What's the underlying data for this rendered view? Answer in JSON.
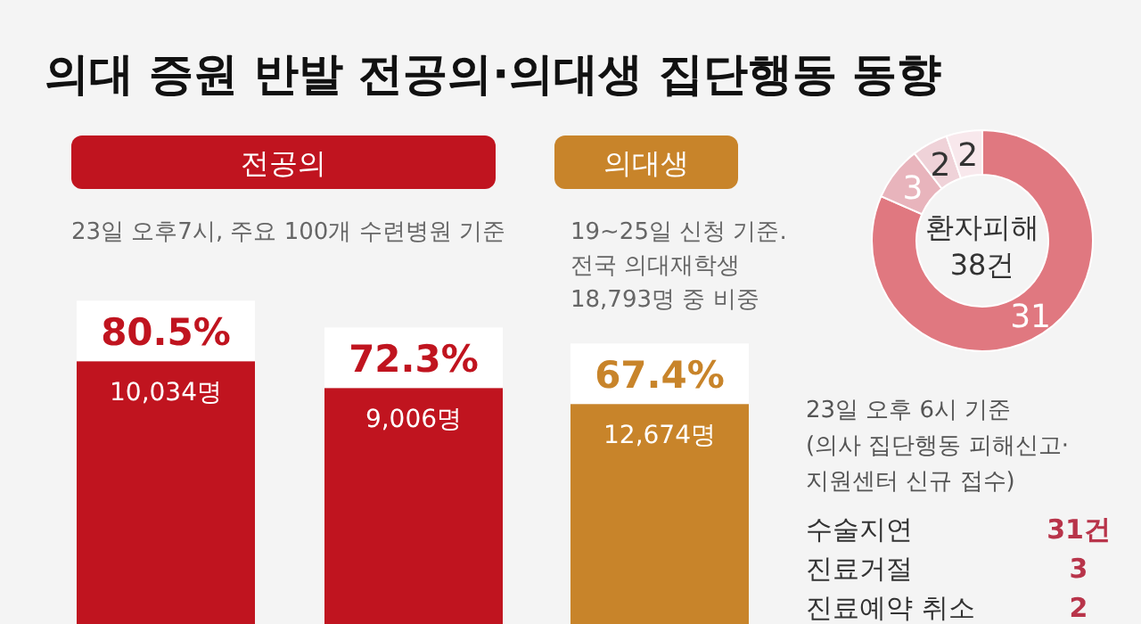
{
  "chart_data": [
    {
      "type": "bar",
      "title": "의대 증원 반발 전공의·의대생 집단행동 동향",
      "categories": [
        null,
        null,
        null
      ],
      "values": [
        80.5,
        72.3,
        67.4
      ],
      "colors": [
        "#c0141f",
        "#c0141f",
        "#c8842a"
      ],
      "value_labels": [
        "80.5%",
        "72.3%",
        "67.4%"
      ],
      "annotations": [
        "전공의",
        "23일 오후7시, 주요 100개 수련병원 기준",
        "의대생",
        "19~25일 신청 기준.\n전국 의대재학생\n18,793명 중 비중",
        "10,034명",
        "9,006명",
        "12,674명"
      ]
    },
    {
      "type": "donut",
      "categories": [
        null,
        null,
        null,
        null
      ],
      "values": [
        31,
        3,
        2,
        2
      ],
      "colors": [
        "#e07880",
        "#e8b4bc",
        "#efd2d8",
        "#f8e8ec"
      ],
      "value_labels": [
        "31",
        "3",
        "2",
        "2"
      ],
      "annotations": [
        "환자피해\n38건",
        "23일 오후 6시 기준\n(의사 집단행동 피해신고·\n지원센터 신규 접수)"
      ]
    },
    {
      "type": "other",
      "annotations": [
        "수술지연",
        "31건",
        "진료거절",
        "3",
        "진료예약 취소",
        "2"
      ]
    }
  ]
}
